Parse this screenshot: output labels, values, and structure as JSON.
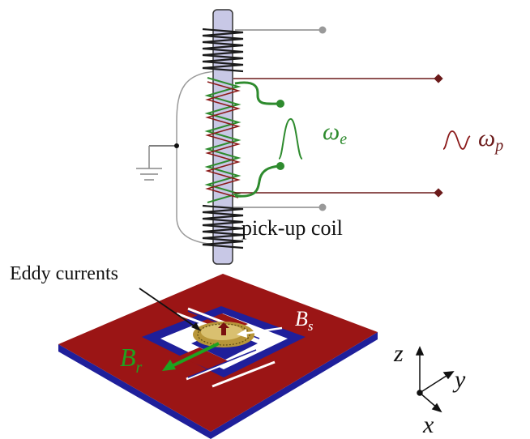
{
  "labels": {
    "omega_e_sym": "ω",
    "omega_e_sub": "e",
    "omega_p_sym": "ω",
    "omega_p_sub": "p",
    "pickup_coil": "pick-up coil",
    "eddy_currents": "Eddy currents",
    "b_s_sym": "B",
    "b_s_sub": "s",
    "b_r_sym": "B",
    "b_r_sub": "r",
    "axis_z": "z",
    "axis_y": "y",
    "axis_x": "x"
  },
  "colors": {
    "excitation_coil": "#2e8b2e",
    "pickup_coil": "#8b1a1a",
    "outer_coil": "#1a1a1a",
    "rod_fill": "#c8c8e6",
    "plate_top": "#9b1515",
    "plate_side": "#1f1f9a",
    "gold_disc": "#b8963a",
    "arrow_green": "#1fa31f"
  }
}
